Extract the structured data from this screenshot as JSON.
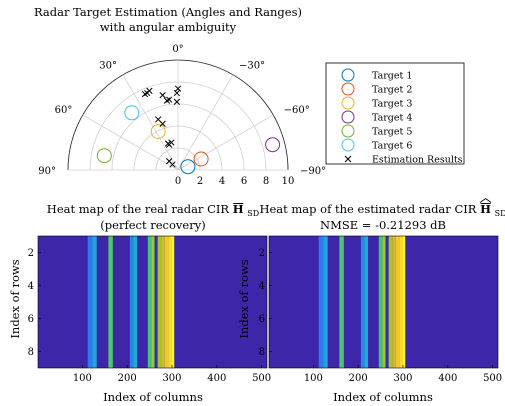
{
  "chart_data": [
    {
      "type": "scatter",
      "coordinate_system": "polar-half",
      "title": "Radar Target Estimation (Angles and Ranges)",
      "subtitle": "with angular ambiguity",
      "angle_ticks": [
        {
          "deg": 0,
          "label": "0°"
        },
        {
          "deg": 30,
          "label": "−30°"
        },
        {
          "deg": 60,
          "label": "−60°"
        },
        {
          "deg": 90,
          "label": "−90°"
        },
        {
          "deg": -30,
          "label": "30°"
        },
        {
          "deg": -60,
          "label": "60°"
        },
        {
          "deg": -90,
          "label": "90°"
        }
      ],
      "radial_ticks": [
        {
          "r": 0,
          "label": "0"
        },
        {
          "r": 2,
          "label": "2"
        },
        {
          "r": 4,
          "label": "4"
        },
        {
          "r": 6,
          "label": "6"
        },
        {
          "r": 8,
          "label": "8"
        },
        {
          "r": 10,
          "label": "10"
        }
      ],
      "rlim": [
        0,
        10
      ],
      "grid": true,
      "legend_position": "right",
      "targets": [
        {
          "name": "Target 1",
          "color": "#0072BD",
          "x": 0.9,
          "y": 0.3
        },
        {
          "name": "Target 2",
          "color": "#D95319",
          "x": 2.1,
          "y": 1.0
        },
        {
          "name": "Target 3",
          "color": "#EDB120",
          "x": -1.8,
          "y": 3.5
        },
        {
          "name": "Target 4",
          "color": "#7E2F8E",
          "x": 8.6,
          "y": 2.3
        },
        {
          "name": "Target 5",
          "color": "#77AC30",
          "x": -6.7,
          "y": 1.3
        },
        {
          "name": "Target 6",
          "color": "#4DBEEE",
          "x": -4.2,
          "y": 5.2
        }
      ],
      "estimation_label": "Estimation Results",
      "estimates": [
        {
          "x": -3.0,
          "y": 6.9
        },
        {
          "x": -2.8,
          "y": 7.0
        },
        {
          "x": -2.6,
          "y": 7.2
        },
        {
          "x": -1.4,
          "y": 6.8
        },
        {
          "x": -1.0,
          "y": 6.3
        },
        {
          "x": -0.8,
          "y": 6.4
        },
        {
          "x": -0.1,
          "y": 7.0
        },
        {
          "x": 0.0,
          "y": 7.4
        },
        {
          "x": -0.1,
          "y": 6.2
        },
        {
          "x": -1.8,
          "y": 4.6
        },
        {
          "x": -1.4,
          "y": 4.2
        },
        {
          "x": -0.9,
          "y": 2.4
        },
        {
          "x": -0.8,
          "y": 2.3
        },
        {
          "x": -0.6,
          "y": 2.5
        },
        {
          "x": -0.8,
          "y": 0.8
        },
        {
          "x": -0.5,
          "y": 0.5
        }
      ]
    },
    {
      "type": "heatmap",
      "title": "Heat map of the real radar CIR",
      "title_symbol": "H",
      "title_subscript": "SD",
      "title_accent": "bar",
      "subtitle": "(perfect recovery)",
      "xlabel": "Index of columns",
      "ylabel": "Index of rows",
      "x_ticks": [
        100,
        200,
        300,
        400,
        500
      ],
      "y_ticks": [
        2,
        4,
        6,
        8
      ],
      "xlim": [
        1,
        512
      ],
      "ylim": [
        1,
        9
      ],
      "background_color": "#3E26A8",
      "stripes": [
        {
          "from": 112,
          "to": 122,
          "color": "#2D7BEF"
        },
        {
          "from": 122,
          "to": 132,
          "color": "#23A4DE"
        },
        {
          "from": 158,
          "to": 168,
          "color": "#4FC66C"
        },
        {
          "from": 206,
          "to": 214,
          "color": "#2B84EA"
        },
        {
          "from": 214,
          "to": 222,
          "color": "#1AAED0"
        },
        {
          "from": 246,
          "to": 254,
          "color": "#3FC57E"
        },
        {
          "from": 254,
          "to": 261,
          "color": "#97C838"
        },
        {
          "from": 264,
          "to": 268,
          "color": "#3A2FAF"
        },
        {
          "from": 268,
          "to": 276,
          "color": "#A9C52E"
        },
        {
          "from": 276,
          "to": 284,
          "color": "#CEBD33"
        },
        {
          "from": 284,
          "to": 292,
          "color": "#F2C52A"
        },
        {
          "from": 292,
          "to": 300,
          "color": "#FADC2A"
        },
        {
          "from": 300,
          "to": 305,
          "color": "#F9F719"
        }
      ]
    },
    {
      "type": "heatmap",
      "title": "Heat map of the estimated radar CIR",
      "title_symbol": "H",
      "title_subscript": "SD",
      "title_accent": "hat-bar",
      "subtitle": "NMSE = -0.21293 dB",
      "xlabel": "Index of columns",
      "ylabel": "Index of rows",
      "x_ticks": [
        100,
        200,
        300,
        400,
        500
      ],
      "y_ticks": [
        2,
        4,
        6,
        8
      ],
      "xlim": [
        1,
        512
      ],
      "ylim": [
        1,
        9
      ],
      "background_color": "#3E26A8",
      "stripes": [
        {
          "from": 112,
          "to": 122,
          "color": "#2D7BEF"
        },
        {
          "from": 122,
          "to": 132,
          "color": "#23A4DE"
        },
        {
          "from": 158,
          "to": 168,
          "color": "#4FC66C"
        },
        {
          "from": 206,
          "to": 214,
          "color": "#2B84EA"
        },
        {
          "from": 214,
          "to": 222,
          "color": "#1AAED0"
        },
        {
          "from": 246,
          "to": 254,
          "color": "#3FC57E"
        },
        {
          "from": 254,
          "to": 261,
          "color": "#97C838"
        },
        {
          "from": 264,
          "to": 268,
          "color": "#3A2FAF"
        },
        {
          "from": 268,
          "to": 276,
          "color": "#A9C52E"
        },
        {
          "from": 276,
          "to": 284,
          "color": "#CEBD33"
        },
        {
          "from": 284,
          "to": 292,
          "color": "#F2C52A"
        },
        {
          "from": 292,
          "to": 300,
          "color": "#FADC2A"
        },
        {
          "from": 300,
          "to": 305,
          "color": "#F9F719"
        }
      ]
    }
  ]
}
